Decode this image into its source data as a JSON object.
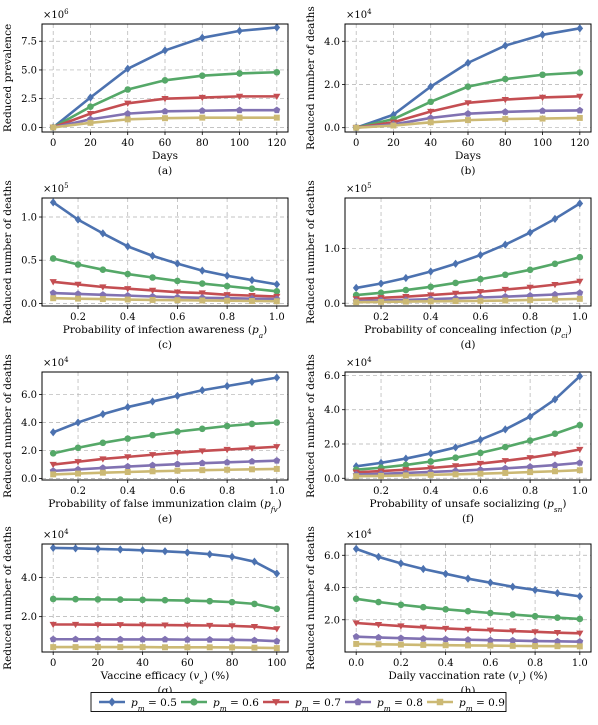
{
  "colors": {
    "pm_0.5": "#4c72b0",
    "pm_0.6": "#55a868",
    "pm_0.7": "#c44e52",
    "pm_0.8": "#8172b2",
    "pm_0.9": "#ccb974"
  },
  "legend": {
    "placement": "bottom-center",
    "entries": [
      {
        "key": "pm_0.5",
        "label": "p_m = 0.5",
        "marker": "diamond"
      },
      {
        "key": "pm_0.6",
        "label": "p_m = 0.6",
        "marker": "circle"
      },
      {
        "key": "pm_0.7",
        "label": "p_m = 0.7",
        "marker": "triangle-down"
      },
      {
        "key": "pm_0.8",
        "label": "p_m = 0.8",
        "marker": "pentagon"
      },
      {
        "key": "pm_0.9",
        "label": "p_m = 0.9",
        "marker": "square"
      }
    ]
  },
  "chart_data": [
    {
      "type": "line",
      "panel": "(a)",
      "xlabel": "Days",
      "ylabel": "Reduced prevalence",
      "exponent": "×10^6",
      "scale": 1000000,
      "xlim": [
        -6,
        126
      ],
      "ylim": [
        -0.4,
        9.0
      ],
      "xticks": [
        0,
        20,
        40,
        60,
        80,
        100,
        120
      ],
      "xticklabels": [
        "0",
        "20",
        "40",
        "60",
        "80",
        "100",
        "120"
      ],
      "yticks": [
        0,
        2.5,
        5.0,
        7.5
      ],
      "yticklabels": [
        "0.0",
        "2.5",
        "5.0",
        "7.5"
      ],
      "grid": true,
      "x": [
        0,
        20,
        40,
        60,
        80,
        100,
        120
      ],
      "series": [
        {
          "key": "pm_0.5",
          "values": [
            0,
            2.6,
            5.1,
            6.7,
            7.8,
            8.4,
            8.7
          ]
        },
        {
          "key": "pm_0.6",
          "values": [
            0,
            1.8,
            3.3,
            4.1,
            4.5,
            4.7,
            4.8
          ]
        },
        {
          "key": "pm_0.7",
          "values": [
            0,
            1.2,
            2.1,
            2.5,
            2.6,
            2.7,
            2.7
          ]
        },
        {
          "key": "pm_0.8",
          "values": [
            0,
            0.7,
            1.2,
            1.4,
            1.45,
            1.5,
            1.5
          ]
        },
        {
          "key": "pm_0.9",
          "values": [
            0,
            0.4,
            0.7,
            0.8,
            0.85,
            0.85,
            0.85
          ]
        }
      ]
    },
    {
      "type": "line",
      "panel": "(b)",
      "xlabel": "Days",
      "ylabel": "Reduced number of deaths",
      "exponent": "×10^4",
      "scale": 10000,
      "xlim": [
        -6,
        126
      ],
      "ylim": [
        -0.2,
        4.8
      ],
      "xticks": [
        0,
        20,
        40,
        60,
        80,
        100,
        120
      ],
      "xticklabels": [
        "0",
        "20",
        "40",
        "60",
        "80",
        "100",
        "120"
      ],
      "yticks": [
        0,
        2.0,
        4.0
      ],
      "yticklabels": [
        "0.0",
        "2.0",
        "4.0"
      ],
      "grid": true,
      "x": [
        0,
        20,
        40,
        60,
        80,
        100,
        120
      ],
      "series": [
        {
          "key": "pm_0.5",
          "values": [
            0,
            0.6,
            1.9,
            3.0,
            3.8,
            4.3,
            4.6
          ]
        },
        {
          "key": "pm_0.6",
          "values": [
            0,
            0.4,
            1.2,
            1.9,
            2.25,
            2.45,
            2.55
          ]
        },
        {
          "key": "pm_0.7",
          "values": [
            0,
            0.25,
            0.75,
            1.15,
            1.3,
            1.4,
            1.45
          ]
        },
        {
          "key": "pm_0.8",
          "values": [
            0,
            0.15,
            0.45,
            0.65,
            0.73,
            0.78,
            0.8
          ]
        },
        {
          "key": "pm_0.9",
          "values": [
            0,
            0.1,
            0.25,
            0.35,
            0.4,
            0.42,
            0.45
          ]
        }
      ]
    },
    {
      "type": "line",
      "panel": "(c)",
      "xlabel": "Probability of infection awareness (p_a)",
      "ylabel": "Reduced number of deaths",
      "exponent": "×10^5",
      "scale": 100000,
      "xlim": [
        0.055,
        1.045
      ],
      "ylim": [
        -0.03,
        1.22
      ],
      "xticks": [
        0.2,
        0.4,
        0.6,
        0.8,
        1.0
      ],
      "xticklabels": [
        "0.2",
        "0.4",
        "0.6",
        "0.8",
        "1.0"
      ],
      "yticks": [
        0,
        0.5,
        1.0
      ],
      "yticklabels": [
        "0.0",
        "0.5",
        "1.0"
      ],
      "grid": true,
      "x": [
        0.1,
        0.2,
        0.3,
        0.4,
        0.5,
        0.6,
        0.7,
        0.8,
        0.9,
        1.0
      ],
      "series": [
        {
          "key": "pm_0.5",
          "values": [
            1.17,
            0.97,
            0.81,
            0.66,
            0.55,
            0.46,
            0.38,
            0.32,
            0.27,
            0.22
          ]
        },
        {
          "key": "pm_0.6",
          "values": [
            0.52,
            0.45,
            0.39,
            0.34,
            0.3,
            0.26,
            0.23,
            0.2,
            0.17,
            0.14
          ]
        },
        {
          "key": "pm_0.7",
          "values": [
            0.25,
            0.22,
            0.19,
            0.17,
            0.15,
            0.13,
            0.12,
            0.1,
            0.09,
            0.08
          ]
        },
        {
          "key": "pm_0.8",
          "values": [
            0.12,
            0.11,
            0.1,
            0.09,
            0.08,
            0.07,
            0.065,
            0.06,
            0.055,
            0.05
          ]
        },
        {
          "key": "pm_0.9",
          "values": [
            0.06,
            0.055,
            0.05,
            0.045,
            0.04,
            0.037,
            0.034,
            0.031,
            0.028,
            0.025
          ]
        }
      ]
    },
    {
      "type": "line",
      "panel": "(d)",
      "xlabel": "Probability of concealing infection (p_ci)",
      "ylabel": "Reduced number of deaths",
      "exponent": "×10^5",
      "scale": 100000,
      "xlim": [
        0.055,
        1.045
      ],
      "ylim": [
        -0.05,
        1.92
      ],
      "xticks": [
        0.2,
        0.4,
        0.6,
        0.8,
        1.0
      ],
      "xticklabels": [
        "0.2",
        "0.4",
        "0.6",
        "0.8",
        "1.0"
      ],
      "yticks": [
        0,
        1.0
      ],
      "yticklabels": [
        "0.0",
        "1.0"
      ],
      "grid": true,
      "x": [
        0.1,
        0.2,
        0.3,
        0.4,
        0.5,
        0.6,
        0.7,
        0.8,
        0.9,
        1.0
      ],
      "series": [
        {
          "key": "pm_0.5",
          "values": [
            0.28,
            0.36,
            0.46,
            0.58,
            0.72,
            0.88,
            1.07,
            1.29,
            1.54,
            1.82
          ]
        },
        {
          "key": "pm_0.6",
          "values": [
            0.15,
            0.19,
            0.24,
            0.3,
            0.37,
            0.44,
            0.52,
            0.61,
            0.72,
            0.84
          ]
        },
        {
          "key": "pm_0.7",
          "values": [
            0.08,
            0.1,
            0.12,
            0.15,
            0.18,
            0.21,
            0.25,
            0.29,
            0.34,
            0.4
          ]
        },
        {
          "key": "pm_0.8",
          "values": [
            0.04,
            0.05,
            0.06,
            0.075,
            0.09,
            0.105,
            0.12,
            0.14,
            0.16,
            0.19
          ]
        },
        {
          "key": "pm_0.9",
          "values": [
            0.02,
            0.025,
            0.03,
            0.035,
            0.04,
            0.045,
            0.05,
            0.06,
            0.07,
            0.08
          ]
        }
      ]
    },
    {
      "type": "line",
      "panel": "(e)",
      "xlabel": "Probability of false immunization claim (p_fv)",
      "ylabel": "Reduced number of deaths",
      "exponent": "×10^4",
      "scale": 10000,
      "xlim": [
        0.055,
        1.045
      ],
      "ylim": [
        -0.1,
        7.6
      ],
      "xticks": [
        0.2,
        0.4,
        0.6,
        0.8,
        1.0
      ],
      "xticklabels": [
        "0.2",
        "0.4",
        "0.6",
        "0.8",
        "1.0"
      ],
      "yticks": [
        0,
        2.0,
        4.0,
        6.0
      ],
      "yticklabels": [
        "0.0",
        "2.0",
        "4.0",
        "6.0"
      ],
      "grid": true,
      "x": [
        0.1,
        0.2,
        0.3,
        0.4,
        0.5,
        0.6,
        0.7,
        0.8,
        0.9,
        1.0
      ],
      "series": [
        {
          "key": "pm_0.5",
          "values": [
            3.3,
            4.0,
            4.6,
            5.1,
            5.5,
            5.9,
            6.3,
            6.6,
            6.9,
            7.2
          ]
        },
        {
          "key": "pm_0.6",
          "values": [
            1.8,
            2.2,
            2.55,
            2.85,
            3.1,
            3.35,
            3.55,
            3.75,
            3.9,
            4.0
          ]
        },
        {
          "key": "pm_0.7",
          "values": [
            1.0,
            1.2,
            1.4,
            1.55,
            1.7,
            1.85,
            1.97,
            2.07,
            2.17,
            2.27
          ]
        },
        {
          "key": "pm_0.8",
          "values": [
            0.55,
            0.65,
            0.76,
            0.86,
            0.95,
            1.03,
            1.1,
            1.16,
            1.22,
            1.28
          ]
        },
        {
          "key": "pm_0.9",
          "values": [
            0.3,
            0.36,
            0.42,
            0.47,
            0.52,
            0.56,
            0.6,
            0.63,
            0.66,
            0.69
          ]
        }
      ]
    },
    {
      "type": "line",
      "panel": "(f)",
      "xlabel": "Probability of unsafe socializing (p_sn)",
      "ylabel": "Reduced number of deaths",
      "exponent": "×10^4",
      "scale": 10000,
      "xlim": [
        0.055,
        1.045
      ],
      "ylim": [
        -0.1,
        6.2
      ],
      "xticks": [
        0.2,
        0.4,
        0.6,
        0.8,
        1.0
      ],
      "xticklabels": [
        "0.2",
        "0.4",
        "0.6",
        "0.8",
        "1.0"
      ],
      "yticks": [
        0,
        2.0,
        4.0,
        6.0
      ],
      "yticklabels": [
        "0.0",
        "2.0",
        "4.0",
        "6.0"
      ],
      "grid": true,
      "x": [
        0.1,
        0.2,
        0.3,
        0.4,
        0.5,
        0.6,
        0.7,
        0.8,
        0.9,
        1.0
      ],
      "series": [
        {
          "key": "pm_0.5",
          "values": [
            0.7,
            0.9,
            1.15,
            1.45,
            1.8,
            2.25,
            2.85,
            3.6,
            4.6,
            5.95
          ]
        },
        {
          "key": "pm_0.6",
          "values": [
            0.5,
            0.62,
            0.78,
            0.98,
            1.2,
            1.48,
            1.82,
            2.2,
            2.6,
            3.1
          ]
        },
        {
          "key": "pm_0.7",
          "values": [
            0.35,
            0.42,
            0.5,
            0.6,
            0.72,
            0.86,
            1.02,
            1.2,
            1.42,
            1.68
          ]
        },
        {
          "key": "pm_0.8",
          "values": [
            0.22,
            0.26,
            0.31,
            0.37,
            0.43,
            0.5,
            0.58,
            0.67,
            0.77,
            0.9
          ]
        },
        {
          "key": "pm_0.9",
          "values": [
            0.12,
            0.14,
            0.17,
            0.2,
            0.23,
            0.27,
            0.31,
            0.36,
            0.41,
            0.47
          ]
        }
      ]
    },
    {
      "type": "line",
      "panel": "(g)",
      "xlabel": "Vaccine efficacy (v_e) (%)",
      "ylabel": "Reduced number of deaths",
      "exponent": "×10^4",
      "scale": 10000,
      "xlim": [
        -5,
        105
      ],
      "ylim": [
        0.2,
        5.7
      ],
      "xticks": [
        0,
        20,
        40,
        60,
        80,
        100
      ],
      "xticklabels": [
        "0",
        "20",
        "40",
        "60",
        "80",
        "100"
      ],
      "yticks": [
        2.0,
        4.0
      ],
      "yticklabels": [
        "2.0",
        "4.0"
      ],
      "grid": true,
      "x": [
        0,
        10,
        20,
        30,
        40,
        50,
        60,
        70,
        80,
        90,
        100
      ],
      "series": [
        {
          "key": "pm_0.5",
          "values": [
            5.5,
            5.48,
            5.45,
            5.42,
            5.38,
            5.33,
            5.27,
            5.18,
            5.05,
            4.8,
            4.2
          ]
        },
        {
          "key": "pm_0.6",
          "values": [
            2.9,
            2.89,
            2.88,
            2.87,
            2.86,
            2.84,
            2.82,
            2.79,
            2.74,
            2.65,
            2.4
          ]
        },
        {
          "key": "pm_0.7",
          "values": [
            1.6,
            1.6,
            1.59,
            1.59,
            1.58,
            1.57,
            1.56,
            1.55,
            1.53,
            1.49,
            1.38
          ]
        },
        {
          "key": "pm_0.8",
          "values": [
            0.85,
            0.85,
            0.85,
            0.84,
            0.84,
            0.84,
            0.83,
            0.83,
            0.82,
            0.8,
            0.75
          ]
        },
        {
          "key": "pm_0.9",
          "values": [
            0.45,
            0.45,
            0.45,
            0.45,
            0.45,
            0.44,
            0.44,
            0.44,
            0.43,
            0.42,
            0.4
          ]
        }
      ]
    },
    {
      "type": "line",
      "panel": "(h)",
      "xlabel": "Daily vaccination rate (v_r) (%)",
      "ylabel": "Reduced number of deaths",
      "exponent": "×10^4",
      "scale": 10000,
      "xlim": [
        -0.05,
        1.05
      ],
      "ylim": [
        0.0,
        6.7
      ],
      "xticks": [
        0.0,
        0.2,
        0.4,
        0.6,
        0.8,
        1.0
      ],
      "xticklabels": [
        "0.0",
        "0.2",
        "0.4",
        "0.6",
        "0.8",
        "1.0"
      ],
      "yticks": [
        2.0,
        4.0,
        6.0
      ],
      "yticklabels": [
        "2.0",
        "4.0",
        "6.0"
      ],
      "grid": true,
      "x": [
        0.0,
        0.1,
        0.2,
        0.3,
        0.4,
        0.5,
        0.6,
        0.7,
        0.8,
        0.9,
        1.0
      ],
      "series": [
        {
          "key": "pm_0.5",
          "values": [
            6.4,
            5.9,
            5.5,
            5.15,
            4.85,
            4.55,
            4.3,
            4.05,
            3.85,
            3.65,
            3.45
          ]
        },
        {
          "key": "pm_0.6",
          "values": [
            3.3,
            3.1,
            2.93,
            2.78,
            2.65,
            2.53,
            2.42,
            2.32,
            2.22,
            2.13,
            2.05
          ]
        },
        {
          "key": "pm_0.7",
          "values": [
            1.8,
            1.7,
            1.61,
            1.53,
            1.46,
            1.4,
            1.35,
            1.3,
            1.25,
            1.2,
            1.16
          ]
        },
        {
          "key": "pm_0.8",
          "values": [
            0.95,
            0.9,
            0.86,
            0.82,
            0.79,
            0.76,
            0.73,
            0.71,
            0.68,
            0.66,
            0.64
          ]
        },
        {
          "key": "pm_0.9",
          "values": [
            0.5,
            0.48,
            0.46,
            0.44,
            0.42,
            0.41,
            0.4,
            0.38,
            0.37,
            0.36,
            0.35
          ]
        }
      ]
    }
  ]
}
